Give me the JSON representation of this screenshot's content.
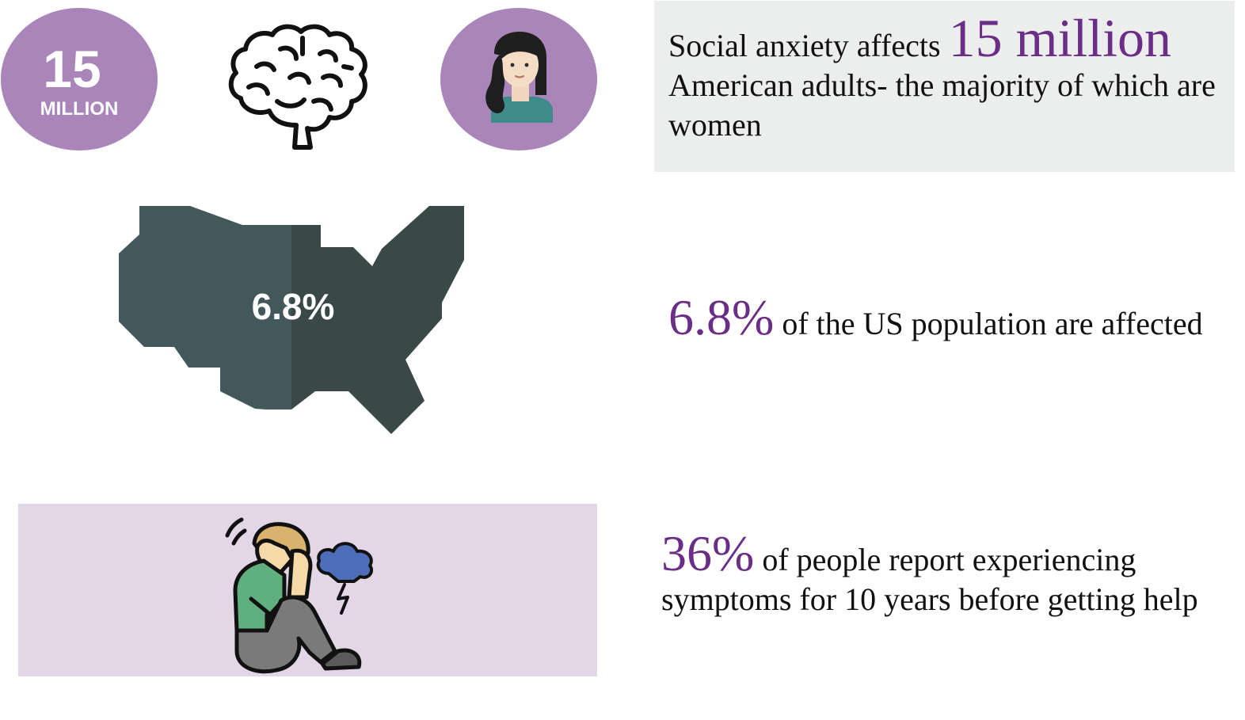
{
  "stat_circle": {
    "number": "15",
    "unit": "MILLION"
  },
  "fact1": {
    "prefix": "Social anxiety affects ",
    "highlight": "15 million",
    "suffix": " American adults- the majority of which are women"
  },
  "map": {
    "label": "6.8%"
  },
  "fact2": {
    "highlight": "6.8%",
    "suffix": " of the US population are affected"
  },
  "fact3": {
    "highlight": "36%",
    "suffix": " of people report experiencing symptoms for 10 years before getting help"
  },
  "icons": [
    "brain-icon",
    "woman-avatar-icon",
    "us-map-icon",
    "distressed-person-icon",
    "storm-cloud-icon"
  ],
  "colors": {
    "accent_purple": "#6b2e86",
    "circle_purple": "#a985b9",
    "panel_lavender": "#e3d6e7",
    "box_gray": "#eceeed",
    "map_dark": "#3c4a4a"
  }
}
